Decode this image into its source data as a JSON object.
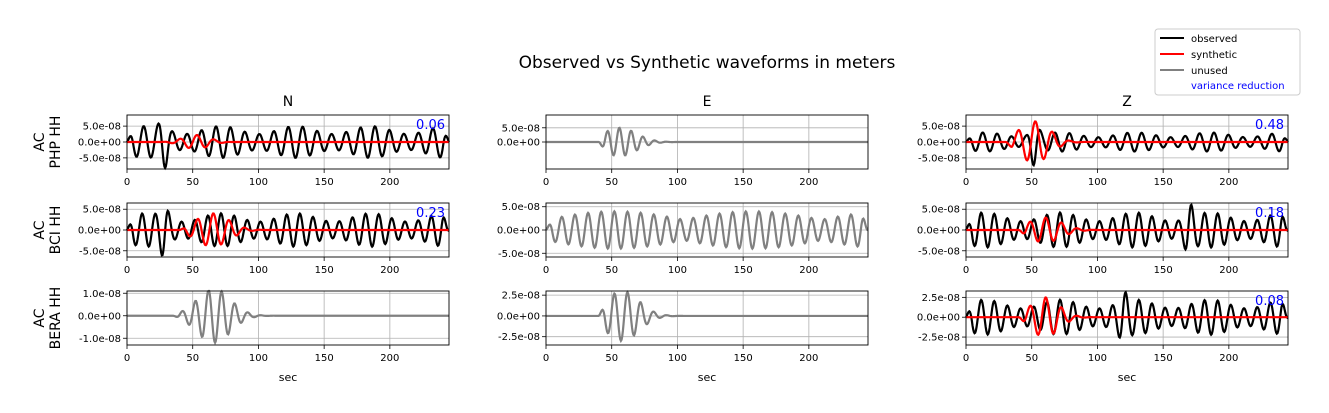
{
  "title": "Observed vs Synthetic waveforms in meters",
  "columns": [
    "N",
    "E",
    "Z"
  ],
  "xlabel": "sec",
  "legend": {
    "placement": "top-right",
    "entries": [
      {
        "label": "observed",
        "color": "#000000"
      },
      {
        "label": "synthetic",
        "color": "#ff0000"
      },
      {
        "label": "unused",
        "color": "#808080"
      },
      {
        "label": "variance reduction",
        "color": "#0000ff"
      }
    ]
  },
  "colors": {
    "observed": "#000000",
    "synthetic": "#ff0000",
    "unused": "#808080",
    "vr": "#0000ff",
    "grid": "#b0b0b0"
  },
  "chart_data": {
    "type": "line",
    "grid": true,
    "xlim": [
      0,
      245
    ],
    "xticks": [
      0,
      50,
      100,
      150,
      200
    ],
    "rows": [
      {
        "ylabel": [
          "AC",
          "PHP HH"
        ],
        "panels": [
          {
            "component": "N",
            "used": true,
            "vr": "0.06",
            "ylim": [
              -8.5e-08,
              8.5e-08
            ],
            "yticks": [
              5e-08,
              0,
              -5e-08
            ],
            "yticklabels": [
              "5.0e-08",
              "0.0e+00",
              "-5.0e-08"
            ],
            "observed": {
              "start": 0,
              "end": 245,
              "period": 11,
              "amp": 5e-08,
              "peak_amp": 8.5e-08,
              "peak_t": 28
            },
            "synthetic": {
              "start": 25,
              "end": 80,
              "period": 13,
              "amp": 2.2e-08
            }
          },
          {
            "component": "E",
            "used": false,
            "ylim": [
              -9.5e-08,
              9.5e-08
            ],
            "yticks": [
              5e-08,
              0
            ],
            "yticklabels": [
              "5.0e-08",
              "0.0e+00"
            ],
            "unused": {
              "start": 40,
              "end": 110,
              "period": 9,
              "amp": 5e-08,
              "center": 56
            }
          },
          {
            "component": "Z",
            "used": true,
            "vr": "0.48",
            "ylim": [
              -8.5e-08,
              8.5e-08
            ],
            "yticks": [
              5e-08,
              0,
              -5e-08
            ],
            "yticklabels": [
              "5.0e-08",
              "0.0e+00",
              "-5.0e-08"
            ],
            "observed": {
              "start": 0,
              "end": 245,
              "period": 11,
              "amp": 3e-08,
              "peak_amp": 7.5e-08,
              "peak_t": 52
            },
            "synthetic": {
              "start": 30,
              "end": 95,
              "period": 13,
              "amp": 6.5e-08,
              "center": 52
            }
          }
        ]
      },
      {
        "ylabel": [
          "AC",
          "BCI HH"
        ],
        "panels": [
          {
            "component": "N",
            "used": true,
            "vr": "0.23",
            "ylim": [
              -6.5e-08,
              6.5e-08
            ],
            "yticks": [
              5e-08,
              0,
              -5e-08
            ],
            "yticklabels": [
              "5.0e-08",
              "0.0e+00",
              "-5.0e-08"
            ],
            "observed": {
              "start": 0,
              "end": 245,
              "period": 10,
              "amp": 4e-08,
              "peak_amp": 6.5e-08,
              "peak_t": 28
            },
            "synthetic": {
              "start": 40,
              "end": 110,
              "period": 12,
              "amp": 4e-08,
              "center": 65
            }
          },
          {
            "component": "E",
            "used": false,
            "ylim": [
              -5.8e-08,
              5.8e-08
            ],
            "yticks": [
              5e-08,
              0,
              -5e-08
            ],
            "yticklabels": [
              "5.0e-08",
              "0.0e+00",
              "-5.0e-08"
            ],
            "unused": {
              "start": 0,
              "end": 245,
              "period": 10,
              "amp": 4e-08,
              "center": 140
            }
          },
          {
            "component": "Z",
            "used": true,
            "vr": "0.18",
            "ylim": [
              -6.5e-08,
              6.5e-08
            ],
            "yticks": [
              5e-08,
              0,
              -5e-08
            ],
            "yticklabels": [
              "5.0e-08",
              "0.0e+00",
              "-5.0e-08"
            ],
            "observed": {
              "start": 0,
              "end": 245,
              "period": 10,
              "amp": 4.2e-08,
              "peak_amp": 6.5e-08,
              "peak_t": 170
            },
            "synthetic": {
              "start": 40,
              "end": 110,
              "period": 12,
              "amp": 3e-08,
              "center": 60
            }
          }
        ]
      },
      {
        "ylabel": [
          "AC",
          "BERA HH"
        ],
        "panels": [
          {
            "component": "N",
            "used": false,
            "ylim": [
              -1.3e-08,
              1.1e-08
            ],
            "yticks": [
              1e-08,
              0,
              -1e-08
            ],
            "yticklabels": [
              "1.0e-08",
              "0.0e+00",
              "-1.0e-08"
            ],
            "unused": {
              "start": 35,
              "end": 120,
              "period": 10,
              "amp": 1.2e-08,
              "center": 66
            }
          },
          {
            "component": "E",
            "used": false,
            "ylim": [
              -3.5e-08,
              3e-08
            ],
            "yticks": [
              2.5e-08,
              0,
              -2.5e-08
            ],
            "yticklabels": [
              "2.5e-08",
              "0.0e+00",
              "-2.5e-08"
            ],
            "unused": {
              "start": 40,
              "end": 110,
              "period": 10,
              "amp": 3e-08,
              "center": 58
            }
          },
          {
            "component": "Z",
            "used": true,
            "vr": "0.08",
            "ylim": [
              -3.5e-08,
              3.3e-08
            ],
            "yticks": [
              2.5e-08,
              0,
              -2.5e-08
            ],
            "yticklabels": [
              "2.5e-08",
              "0.0e+00",
              "-2.5e-08"
            ],
            "observed": {
              "start": 0,
              "end": 245,
              "period": 10,
              "amp": 2.2e-08,
              "peak_amp": 3.3e-08,
              "peak_t": 120
            },
            "synthetic": {
              "start": 40,
              "end": 100,
              "period": 12,
              "amp": 2.5e-08,
              "center": 60
            }
          }
        ]
      }
    ]
  }
}
